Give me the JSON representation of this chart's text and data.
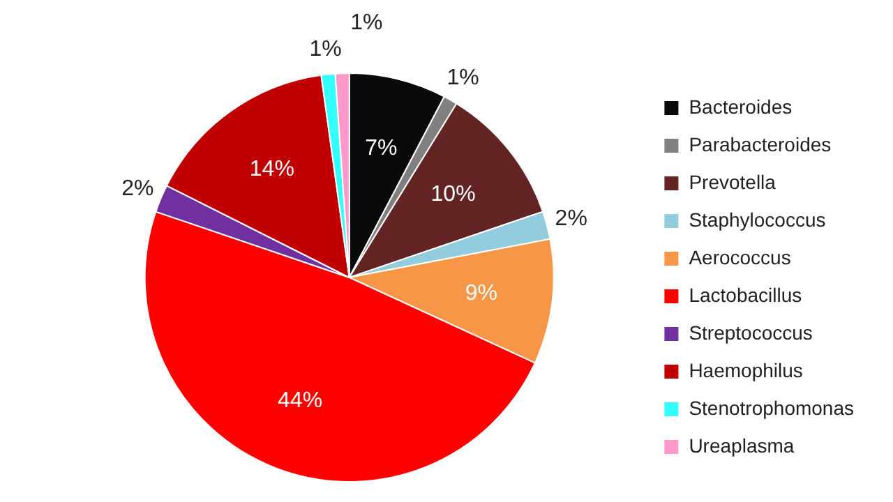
{
  "chart_data": {
    "type": "pie",
    "categories": [
      "Bacteroides",
      "Parabacteroides",
      "Prevotella",
      "Staphylococcus",
      "Aerococcus",
      "Lactobacillus",
      "Streptococcus",
      "Haemophilus",
      "Stenotrophomonas",
      "Ureaplasma"
    ],
    "values": [
      7,
      1,
      10,
      2,
      9,
      44,
      2,
      14,
      1,
      1
    ],
    "value_labels": [
      "7%",
      "1%",
      "10%",
      "2%",
      "9%",
      "44%",
      "2%",
      "14%",
      "1%",
      "1%"
    ],
    "colors": [
      "#0a0a0a",
      "#808080",
      "#632523",
      "#93cddd",
      "#f79646",
      "#ff0000",
      "#7030a0",
      "#c00000",
      "#33ffff",
      "#ff99cc"
    ],
    "legend": "right"
  }
}
